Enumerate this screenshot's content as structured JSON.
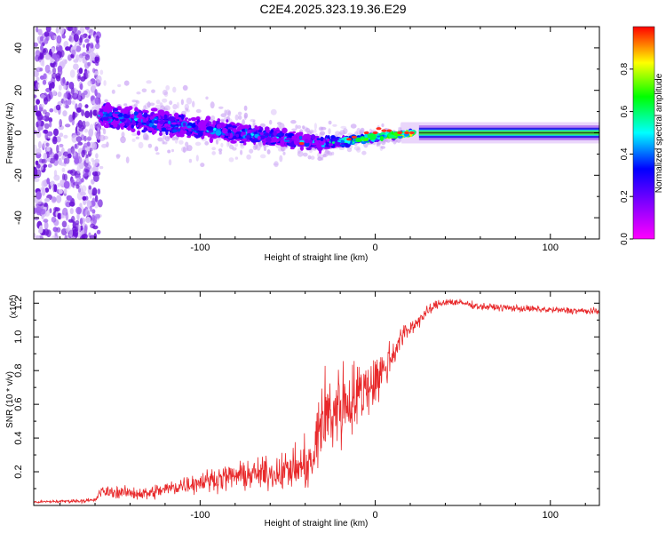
{
  "title": "C2E4.2025.323.19.36.E29",
  "chart_data": [
    {
      "type": "heatmap",
      "name": "spectrogram",
      "xlabel": "Height of straight line (km)",
      "ylabel": "Frequency (Hz)",
      "xlim": [
        -195,
        128
      ],
      "ylim": [
        -50,
        50
      ],
      "xticks": [
        -100,
        0,
        100
      ],
      "xtick_labels": [
        "-100",
        "0",
        "100"
      ],
      "yticks": [
        -40,
        -20,
        0,
        20,
        40
      ],
      "ytick_labels": [
        "-40",
        "-20",
        "0",
        "20",
        "40"
      ],
      "colorbar": {
        "label": "Normalized spectral amplitude",
        "range": [
          0,
          1
        ],
        "ticks": [
          0.0,
          0.2,
          0.4,
          0.6,
          0.8
        ],
        "tick_labels": [
          "0.0",
          "0.2",
          "0.4",
          "0.6",
          "0.8"
        ],
        "colors": [
          "#ff00ff",
          "#8000ff",
          "#0000ff",
          "#00ffff",
          "#00ff00",
          "#ffff00",
          "#ff0000"
        ]
      },
      "regions": [
        {
          "description": "scattered noise",
          "x": [
            -195,
            -157
          ],
          "freq": [
            -50,
            50
          ],
          "amplitude": 0.12
        },
        {
          "description": "broad signal band",
          "x": [
            -157,
            -30
          ],
          "freq_center": [
            8,
            -5
          ],
          "freq_halfwidth": [
            8,
            4
          ],
          "amplitude": 0.35
        },
        {
          "description": "converging signal",
          "x": [
            -30,
            25
          ],
          "freq_center": [
            -5,
            0
          ],
          "freq_halfwidth": [
            3,
            1
          ],
          "amplitude": 0.6
        },
        {
          "description": "steady band",
          "x": [
            25,
            128
          ],
          "freq_center": [
            0,
            0
          ],
          "freq_halfwidth": [
            4,
            4
          ],
          "amplitude": 0.45
        }
      ]
    },
    {
      "type": "line",
      "name": "snr",
      "xlabel": "Height of straight line (km)",
      "ylabel": "SNR (10 * v/v)",
      "y_multiplier": "(x10",
      "y_multiplier_exp": "4",
      "y_multiplier_close": ")",
      "xlim": [
        -195,
        128
      ],
      "ylim": [
        0.0,
        1.27
      ],
      "xticks": [
        -100,
        0,
        100
      ],
      "xtick_labels": [
        "-100",
        "0",
        "100"
      ],
      "yticks": [
        0.2,
        0.4,
        0.6,
        0.8,
        1.0,
        1.2
      ],
      "ytick_labels": [
        "0.2",
        "0.4",
        "0.6",
        "0.8",
        "1.0",
        "1.2"
      ],
      "color": "#e8282a",
      "series": [
        {
          "name": "SNR",
          "x": [
            -195,
            -160,
            -157,
            -150,
            -130,
            -110,
            -90,
            -75,
            -60,
            -45,
            -35,
            -32,
            -25,
            -20,
            -15,
            -10,
            -5,
            0,
            5,
            10,
            15,
            20,
            25,
            30,
            35,
            40,
            50,
            60,
            80,
            100,
            128
          ],
          "y": [
            0.02,
            0.03,
            0.08,
            0.08,
            0.07,
            0.12,
            0.16,
            0.18,
            0.19,
            0.22,
            0.25,
            0.5,
            0.55,
            0.6,
            0.62,
            0.65,
            0.7,
            0.75,
            0.8,
            0.9,
            1.0,
            1.05,
            1.1,
            1.15,
            1.19,
            1.21,
            1.2,
            1.18,
            1.17,
            1.16,
            1.15
          ],
          "noise": [
            0.01,
            0.02,
            0.05,
            0.05,
            0.06,
            0.08,
            0.1,
            0.12,
            0.14,
            0.18,
            0.25,
            0.4,
            0.4,
            0.4,
            0.35,
            0.3,
            0.25,
            0.25,
            0.2,
            0.15,
            0.1,
            0.08,
            0.06,
            0.05,
            0.04,
            0.04,
            0.03,
            0.03,
            0.03,
            0.03,
            0.03
          ]
        }
      ]
    }
  ]
}
